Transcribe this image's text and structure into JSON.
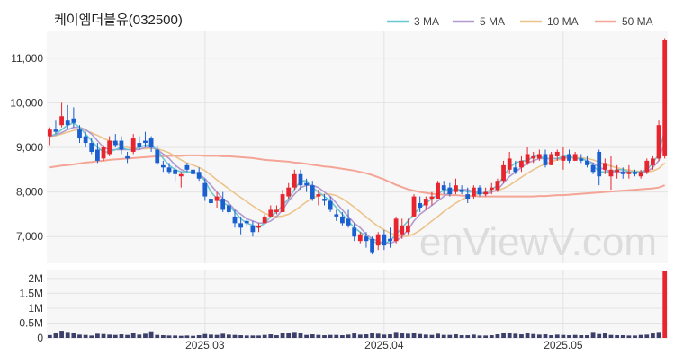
{
  "title": "케이엠더블유(032500)",
  "watermark": "enViewV.com",
  "legend": [
    {
      "label": "3 MA",
      "color": "#6cc8d0"
    },
    {
      "label": "5 MA",
      "color": "#b29ad0"
    },
    {
      "label": "10 MA",
      "color": "#ecc48a"
    },
    {
      "label": "50 MA",
      "color": "#f4a596"
    }
  ],
  "colors": {
    "up": "#e8252e",
    "down": "#1a5fd0",
    "volume": "#3d3f6b",
    "grid": "#e3e3e3",
    "panel": "#f7f7f7"
  },
  "chart_data": [
    {
      "type": "candlestick",
      "title": "케이엠더블유(032500)",
      "ylim": [
        6400,
        11600
      ],
      "yticks": [
        7000,
        8000,
        9000,
        10000,
        11000
      ],
      "ytick_labels": [
        "7,000",
        "8,000",
        "9,000",
        "10,000",
        "11,000"
      ],
      "xtick_labels": [
        {
          "label": "2025.03",
          "index": 26
        },
        {
          "label": "2025.04",
          "index": 56
        },
        {
          "label": "2025.05",
          "index": 86
        }
      ],
      "grid": true,
      "legend_position": "top-right",
      "ohlc": [
        [
          9250,
          9450,
          9050,
          9400
        ],
        [
          9400,
          9600,
          9300,
          9350
        ],
        [
          9500,
          10000,
          9450,
          9700
        ],
        [
          9600,
          9950,
          9400,
          9500
        ],
        [
          9650,
          9900,
          9450,
          9550
        ],
        [
          9400,
          9500,
          9100,
          9200
        ],
        [
          9250,
          9350,
          9000,
          9100
        ],
        [
          9100,
          9200,
          8850,
          8900
        ],
        [
          8950,
          9100,
          8650,
          8700
        ],
        [
          8750,
          9050,
          8700,
          9000
        ],
        [
          8850,
          9250,
          8800,
          9150
        ],
        [
          9150,
          9300,
          9000,
          9050
        ],
        [
          9150,
          9250,
          8850,
          8950
        ],
        [
          8800,
          8900,
          8650,
          8750
        ],
        [
          8900,
          9300,
          8850,
          9200
        ],
        [
          9100,
          9250,
          8950,
          9000
        ],
        [
          9150,
          9350,
          9000,
          9100
        ],
        [
          9200,
          9250,
          8900,
          9000
        ],
        [
          8950,
          9050,
          8600,
          8650
        ],
        [
          8600,
          8700,
          8450,
          8550
        ],
        [
          8550,
          8650,
          8400,
          8450
        ],
        [
          8500,
          8600,
          8250,
          8400
        ],
        [
          8350,
          8450,
          8100,
          8400
        ],
        [
          8600,
          8650,
          8450,
          8500
        ],
        [
          8500,
          8550,
          8350,
          8400
        ],
        [
          8450,
          8550,
          8250,
          8300
        ],
        [
          8200,
          8300,
          7800,
          7900
        ],
        [
          7850,
          7950,
          7600,
          7750
        ],
        [
          7800,
          8000,
          7650,
          7900
        ],
        [
          7850,
          8000,
          7550,
          7600
        ],
        [
          7700,
          7800,
          7500,
          7550
        ],
        [
          7450,
          7600,
          7200,
          7300
        ],
        [
          7300,
          7450,
          7050,
          7200
        ],
        [
          7350,
          7400,
          7250,
          7300
        ],
        [
          7250,
          7350,
          7000,
          7100
        ],
        [
          7200,
          7300,
          7100,
          7250
        ],
        [
          7300,
          7500,
          7300,
          7450
        ],
        [
          7450,
          7700,
          7450,
          7600
        ],
        [
          7550,
          7700,
          7500,
          7600
        ],
        [
          7550,
          8050,
          7550,
          7950
        ],
        [
          7900,
          8200,
          7850,
          8100
        ],
        [
          8100,
          8500,
          8050,
          8400
        ],
        [
          8400,
          8500,
          8050,
          8150
        ],
        [
          8200,
          8300,
          8000,
          8150
        ],
        [
          8150,
          8250,
          7800,
          7850
        ],
        [
          7900,
          8050,
          7700,
          7950
        ],
        [
          7850,
          7950,
          7700,
          7800
        ],
        [
          7800,
          7900,
          7550,
          7600
        ],
        [
          7500,
          7600,
          7350,
          7450
        ],
        [
          7450,
          7550,
          7250,
          7300
        ],
        [
          7400,
          7600,
          7200,
          7250
        ],
        [
          7200,
          7300,
          6900,
          7000
        ],
        [
          6900,
          7100,
          6850,
          7050
        ],
        [
          7000,
          7100,
          6750,
          6900
        ],
        [
          6950,
          7000,
          6600,
          6650
        ],
        [
          6800,
          7100,
          6700,
          7050
        ],
        [
          7050,
          7150,
          6700,
          6800
        ],
        [
          6950,
          7200,
          6750,
          6900
        ],
        [
          6900,
          7450,
          6850,
          7400
        ],
        [
          7050,
          7400,
          6950,
          7250
        ],
        [
          7100,
          7400,
          7050,
          7250
        ],
        [
          7450,
          7950,
          7450,
          7900
        ],
        [
          7750,
          7900,
          7550,
          7650
        ],
        [
          7700,
          7900,
          7600,
          7850
        ],
        [
          7850,
          8000,
          7700,
          7900
        ],
        [
          7850,
          8250,
          7850,
          8200
        ],
        [
          8150,
          8250,
          7950,
          8050
        ],
        [
          8100,
          8200,
          7900,
          7950
        ],
        [
          8000,
          8300,
          7950,
          8150
        ],
        [
          8050,
          8150,
          7950,
          8000
        ],
        [
          7950,
          8100,
          7750,
          7850
        ],
        [
          7900,
          8150,
          7850,
          8100
        ],
        [
          8100,
          8150,
          7900,
          7950
        ],
        [
          7950,
          8100,
          7900,
          8000
        ],
        [
          8050,
          8200,
          7950,
          8100
        ],
        [
          8050,
          8300,
          8000,
          8250
        ],
        [
          8250,
          8700,
          8200,
          8600
        ],
        [
          8500,
          8900,
          8400,
          8750
        ],
        [
          8550,
          8700,
          8400,
          8450
        ],
        [
          8550,
          8800,
          8450,
          8700
        ],
        [
          8650,
          9000,
          8600,
          8850
        ],
        [
          8750,
          8900,
          8650,
          8800
        ],
        [
          8750,
          8950,
          8700,
          8850
        ],
        [
          8850,
          8950,
          8550,
          8600
        ],
        [
          8600,
          8900,
          8600,
          8850
        ],
        [
          8800,
          8950,
          8700,
          8900
        ],
        [
          8700,
          9000,
          8500,
          8800
        ],
        [
          8850,
          8950,
          8650,
          8700
        ],
        [
          8700,
          8900,
          8700,
          8850
        ],
        [
          8750,
          8850,
          8650,
          8700
        ],
        [
          8700,
          8800,
          8550,
          8600
        ],
        [
          8600,
          8650,
          8400,
          8450
        ],
        [
          8900,
          8950,
          8150,
          8350
        ],
        [
          8500,
          8750,
          8400,
          8650
        ],
        [
          8350,
          8800,
          8050,
          8500
        ],
        [
          8450,
          8600,
          8300,
          8500
        ],
        [
          8450,
          8550,
          8300,
          8400
        ],
        [
          8400,
          8600,
          8300,
          8450
        ],
        [
          8450,
          8500,
          8350,
          8400
        ],
        [
          8350,
          8500,
          8300,
          8450
        ],
        [
          8450,
          8750,
          8400,
          8700
        ],
        [
          8600,
          8800,
          8500,
          8750
        ],
        [
          8750,
          9600,
          8700,
          9500
        ],
        [
          8800,
          11450,
          8750,
          11400
        ]
      ],
      "ma": {
        "3": [
          9250,
          9300,
          9400,
          9500,
          9550,
          9450,
          9300,
          9150,
          9000,
          8900,
          8900,
          8950,
          9000,
          8950,
          8950,
          9000,
          9050,
          9050,
          8950,
          8750,
          8600,
          8500,
          8450,
          8450,
          8450,
          8400,
          8250,
          8000,
          7850,
          7750,
          7700,
          7550,
          7400,
          7300,
          7250,
          7200,
          7300,
          7450,
          7550,
          7700,
          7850,
          8050,
          8250,
          8250,
          8100,
          8000,
          7900,
          7800,
          7650,
          7500,
          7350,
          7200,
          7100,
          7000,
          6900,
          6850,
          6850,
          6900,
          7050,
          7200,
          7350,
          7500,
          7650,
          7750,
          7850,
          7950,
          8050,
          8050,
          8050,
          8050,
          8000,
          8000,
          7950,
          8000,
          8050,
          8150,
          8350,
          8550,
          8650,
          8700,
          8700,
          8800,
          8800,
          8750,
          8750,
          8750,
          8800,
          8800,
          8750,
          8750,
          8700,
          8600,
          8450,
          8450,
          8450,
          8500,
          8500,
          8450,
          8450,
          8450,
          8500,
          8650,
          8850,
          9400
        ],
        "5": [
          9250,
          9280,
          9330,
          9400,
          9450,
          9450,
          9400,
          9300,
          9150,
          9000,
          8950,
          8950,
          8950,
          8950,
          8950,
          8950,
          9000,
          9000,
          8950,
          8850,
          8750,
          8600,
          8500,
          8450,
          8450,
          8400,
          8300,
          8150,
          8000,
          7850,
          7750,
          7600,
          7500,
          7400,
          7350,
          7300,
          7300,
          7350,
          7450,
          7600,
          7800,
          7950,
          8100,
          8150,
          8150,
          8100,
          8000,
          7900,
          7750,
          7600,
          7450,
          7300,
          7200,
          7050,
          6950,
          6900,
          6850,
          6850,
          6900,
          7000,
          7150,
          7350,
          7500,
          7600,
          7700,
          7800,
          7900,
          8000,
          8050,
          8050,
          8050,
          8000,
          8000,
          7950,
          8000,
          8050,
          8200,
          8350,
          8450,
          8550,
          8650,
          8700,
          8750,
          8750,
          8750,
          8750,
          8750,
          8800,
          8750,
          8750,
          8700,
          8650,
          8550,
          8500,
          8450,
          8450,
          8450,
          8450,
          8450,
          8450,
          8450,
          8550,
          8700,
          9150
        ],
        "10": [
          9250,
          9260,
          9300,
          9340,
          9380,
          9400,
          9380,
          9330,
          9270,
          9200,
          9150,
          9100,
          9050,
          9000,
          8980,
          8970,
          8970,
          8980,
          8970,
          8930,
          8880,
          8800,
          8720,
          8650,
          8600,
          8550,
          8480,
          8380,
          8270,
          8170,
          8070,
          7970,
          7880,
          7780,
          7690,
          7600,
          7520,
          7470,
          7450,
          7460,
          7500,
          7580,
          7680,
          7780,
          7860,
          7920,
          7950,
          7950,
          7920,
          7850,
          7760,
          7660,
          7550,
          7440,
          7330,
          7230,
          7150,
          7080,
          7030,
          7000,
          7010,
          7060,
          7140,
          7240,
          7350,
          7450,
          7560,
          7660,
          7750,
          7830,
          7890,
          7930,
          7960,
          7980,
          8000,
          8030,
          8080,
          8150,
          8240,
          8330,
          8420,
          8500,
          8570,
          8630,
          8680,
          8720,
          8740,
          8760,
          8770,
          8770,
          8750,
          8720,
          8670,
          8620,
          8580,
          8540,
          8510,
          8490,
          8470,
          8460,
          8450,
          8470,
          8530,
          8650
        ],
        "50": [
          8550,
          8570,
          8590,
          8600,
          8620,
          8640,
          8660,
          8670,
          8690,
          8700,
          8720,
          8730,
          8740,
          8750,
          8760,
          8770,
          8780,
          8790,
          8800,
          8800,
          8810,
          8810,
          8810,
          8820,
          8820,
          8820,
          8810,
          8810,
          8810,
          8800,
          8800,
          8790,
          8780,
          8770,
          8760,
          8740,
          8720,
          8710,
          8700,
          8690,
          8680,
          8660,
          8650,
          8630,
          8610,
          8590,
          8570,
          8560,
          8540,
          8520,
          8500,
          8480,
          8450,
          8420,
          8380,
          8330,
          8280,
          8220,
          8160,
          8110,
          8060,
          8030,
          8000,
          7980,
          7960,
          7950,
          7940,
          7930,
          7930,
          7920,
          7910,
          7910,
          7900,
          7900,
          7900,
          7900,
          7900,
          7900,
          7900,
          7900,
          7900,
          7900,
          7910,
          7910,
          7920,
          7930,
          7930,
          7940,
          7950,
          7960,
          7970,
          7980,
          7990,
          8000,
          8010,
          8020,
          8030,
          8040,
          8050,
          8060,
          8070,
          8080,
          8100,
          8150
        ]
      }
    },
    {
      "type": "bar",
      "ylim": [
        0,
        2300000
      ],
      "yticks": [
        0,
        500000,
        1000000,
        1500000,
        2000000
      ],
      "ytick_labels": [
        "0",
        "0.5M",
        "1M",
        "1.5M",
        "2M"
      ],
      "volume": [
        95000,
        150000,
        240000,
        200000,
        160000,
        110000,
        100000,
        80000,
        140000,
        130000,
        110000,
        100000,
        120000,
        100000,
        160000,
        110000,
        140000,
        220000,
        100000,
        90000,
        80000,
        80000,
        70000,
        80000,
        70000,
        90000,
        130000,
        110000,
        100000,
        140000,
        110000,
        100000,
        90000,
        80000,
        80000,
        80000,
        100000,
        120000,
        90000,
        160000,
        180000,
        200000,
        150000,
        100000,
        120000,
        100000,
        90000,
        100000,
        100000,
        90000,
        110000,
        150000,
        110000,
        120000,
        160000,
        140000,
        110000,
        120000,
        200000,
        150000,
        140000,
        180000,
        130000,
        110000,
        100000,
        140000,
        100000,
        100000,
        120000,
        90000,
        90000,
        110000,
        80000,
        80000,
        90000,
        120000,
        160000,
        180000,
        140000,
        120000,
        150000,
        130000,
        110000,
        120000,
        90000,
        110000,
        100000,
        90000,
        100000,
        90000,
        90000,
        200000,
        130000,
        150000,
        100000,
        90000,
        90000,
        80000,
        80000,
        100000,
        110000,
        150000,
        200000,
        2250000
      ]
    }
  ]
}
